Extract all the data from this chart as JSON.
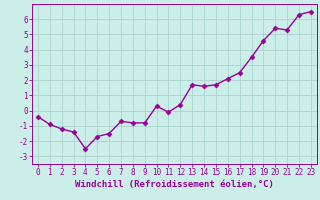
{
  "x": [
    0,
    1,
    2,
    3,
    4,
    5,
    6,
    7,
    8,
    9,
    10,
    11,
    12,
    13,
    14,
    15,
    16,
    17,
    18,
    19,
    20,
    21,
    22,
    23
  ],
  "y": [
    -0.4,
    -0.9,
    -1.2,
    -1.4,
    -2.5,
    -1.7,
    -1.5,
    -0.7,
    -0.8,
    -0.8,
    0.3,
    -0.1,
    0.4,
    1.7,
    1.6,
    1.7,
    2.1,
    2.5,
    3.5,
    4.6,
    5.4,
    5.3,
    6.3,
    6.5
  ],
  "line_color": "#990099",
  "marker": "D",
  "markersize": 2.5,
  "linewidth": 1.0,
  "xlabel": "Windchill (Refroidissement éolien,°C)",
  "xlabel_fontsize": 6.5,
  "tick_fontsize": 5.5,
  "xlim": [
    -0.5,
    23.5
  ],
  "ylim": [
    -3.5,
    7.0
  ],
  "yticks": [
    -3,
    -2,
    -1,
    0,
    1,
    2,
    3,
    4,
    5,
    6
  ],
  "xticks": [
    0,
    1,
    2,
    3,
    4,
    5,
    6,
    7,
    8,
    9,
    10,
    11,
    12,
    13,
    14,
    15,
    16,
    17,
    18,
    19,
    20,
    21,
    22,
    23
  ],
  "bg_color": "#cceee8",
  "grid_color": "#aad4ce",
  "fig_bg": "#cceee8"
}
